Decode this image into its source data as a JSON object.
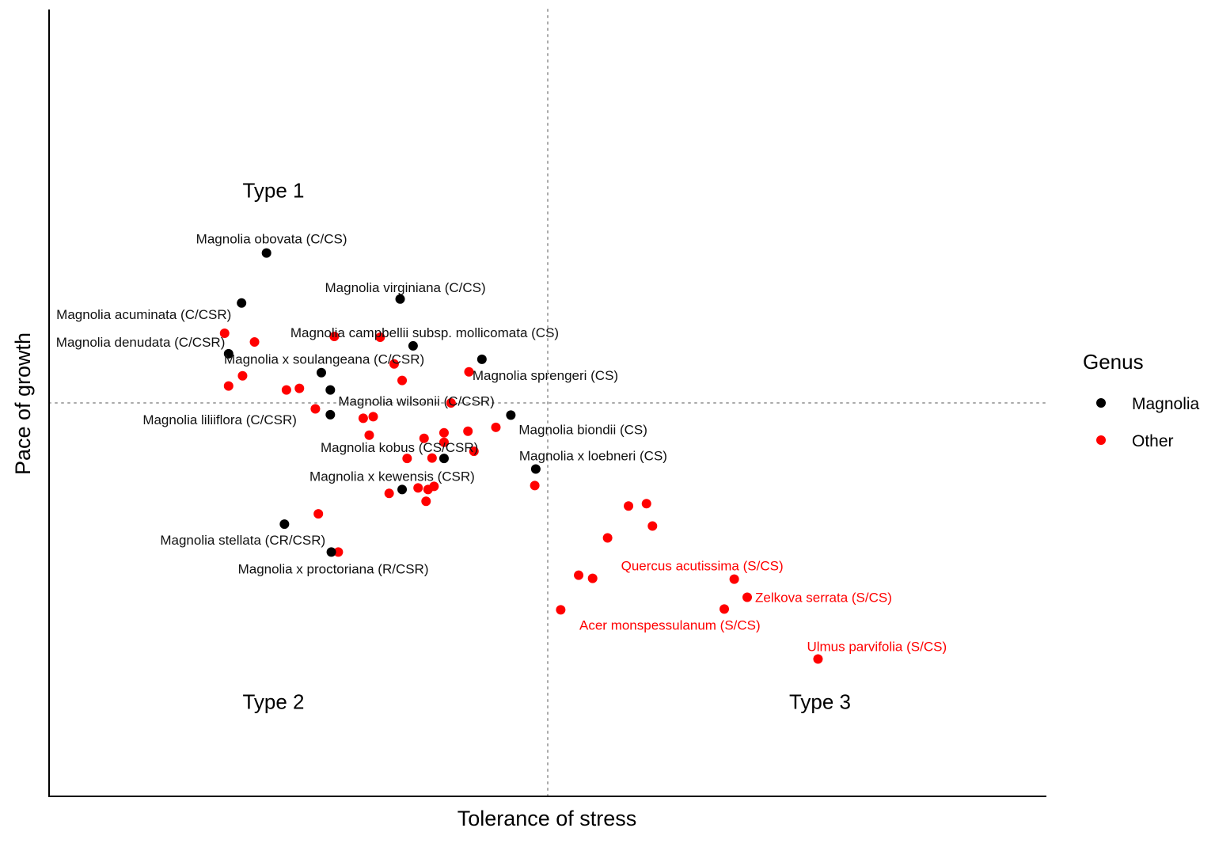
{
  "chart_data": {
    "type": "scatter",
    "xlabel": "Tolerance of stress",
    "ylabel": "Pace of growth",
    "xlim": [
      0,
      100
    ],
    "ylim": [
      -100,
      100
    ],
    "ref_lines": {
      "x": 50,
      "y": 0
    },
    "grid": false,
    "legend": {
      "title": "Genus",
      "position": "right",
      "entries": [
        {
          "name": "Magnolia",
          "color": "#000000"
        },
        {
          "name": "Other",
          "color": "#ff0000"
        }
      ]
    },
    "quadrant_labels": [
      {
        "text": "Type 1",
        "x": 22.5,
        "y": 54
      },
      {
        "text": "Type 2",
        "x": 22.5,
        "y": -76
      },
      {
        "text": "Type 3",
        "x": 77.3,
        "y": -76
      }
    ],
    "series": [
      {
        "name": "Magnolia",
        "color": "#000000",
        "points": [
          {
            "x": 21.8,
            "y": 38.1,
            "label": "Magnolia obovata (C/CS)"
          },
          {
            "x": 35.2,
            "y": 26.4,
            "label": "Magnolia virginiana (C/CS)"
          },
          {
            "x": 19.3,
            "y": 25.4,
            "label": "Magnolia acuminata (C/CSR)"
          },
          {
            "x": 36.5,
            "y": 14.5,
            "label": "Magnolia campbellii subsp. mollicomata (CS)"
          },
          {
            "x": 18.0,
            "y": 12.5,
            "label": "Magnolia denudata (C/CSR)"
          },
          {
            "x": 27.3,
            "y": 7.7,
            "label": "Magnolia x soulangeana (C/CSR)"
          },
          {
            "x": 43.4,
            "y": 11.1,
            "label": "Magnolia sprengeri (CS)"
          },
          {
            "x": 28.2,
            "y": 3.3,
            "label": "Magnolia wilsonii (C/CSR)"
          },
          {
            "x": 28.2,
            "y": -3.0,
            "label": "Magnolia liliiflora (C/CSR)"
          },
          {
            "x": 46.3,
            "y": -3.1,
            "label": "Magnolia biondii (CS)"
          },
          {
            "x": 39.6,
            "y": -14.1,
            "label": "Magnolia kobus (CS/CSR)"
          },
          {
            "x": 48.8,
            "y": -16.8,
            "label": "Magnolia x loebneri (CS)"
          },
          {
            "x": 35.4,
            "y": -22.0,
            "label": "Magnolia x kewensis (CSR)"
          },
          {
            "x": 23.6,
            "y": -30.8,
            "label": "Magnolia stellata (CR/CSR)"
          },
          {
            "x": 28.3,
            "y": -37.9,
            "label": "Magnolia x proctoriana (R/CSR)"
          }
        ]
      },
      {
        "name": "Other",
        "color": "#ff0000",
        "points": [
          {
            "x": 17.6,
            "y": 17.7
          },
          {
            "x": 20.6,
            "y": 15.5
          },
          {
            "x": 28.6,
            "y": 16.9
          },
          {
            "x": 33.2,
            "y": 16.7
          },
          {
            "x": 34.6,
            "y": 9.9
          },
          {
            "x": 42.1,
            "y": 7.9
          },
          {
            "x": 19.4,
            "y": 6.9
          },
          {
            "x": 35.4,
            "y": 5.7
          },
          {
            "x": 18.0,
            "y": 4.3
          },
          {
            "x": 23.8,
            "y": 3.3
          },
          {
            "x": 25.1,
            "y": 3.7
          },
          {
            "x": 40.3,
            "y": 0.0
          },
          {
            "x": 26.7,
            "y": -1.5
          },
          {
            "x": 32.5,
            "y": -3.5
          },
          {
            "x": 31.5,
            "y": -3.9
          },
          {
            "x": 32.1,
            "y": -8.2
          },
          {
            "x": 39.6,
            "y": -7.6
          },
          {
            "x": 37.6,
            "y": -9.0
          },
          {
            "x": 39.6,
            "y": -10.0
          },
          {
            "x": 42.0,
            "y": -7.2
          },
          {
            "x": 44.8,
            "y": -6.2
          },
          {
            "x": 42.6,
            "y": -12.3
          },
          {
            "x": 35.9,
            "y": -14.1
          },
          {
            "x": 38.4,
            "y": -14.0
          },
          {
            "x": 48.7,
            "y": -21.0
          },
          {
            "x": 37.0,
            "y": -21.6
          },
          {
            "x": 38.0,
            "y": -22.0
          },
          {
            "x": 38.6,
            "y": -21.2
          },
          {
            "x": 34.1,
            "y": -23.0
          },
          {
            "x": 37.8,
            "y": -25.0
          },
          {
            "x": 27.0,
            "y": -28.2
          },
          {
            "x": 58.1,
            "y": -26.2
          },
          {
            "x": 59.9,
            "y": -25.6
          },
          {
            "x": 56.0,
            "y": -34.3
          },
          {
            "x": 60.5,
            "y": -31.3
          },
          {
            "x": 29.0,
            "y": -37.9
          },
          {
            "x": 53.1,
            "y": -43.8
          },
          {
            "x": 54.5,
            "y": -44.6
          },
          {
            "x": 68.7,
            "y": -44.8,
            "label": "Quercus acutissima (S/CS)"
          },
          {
            "x": 70.0,
            "y": -49.4,
            "label": "Zelkova serrata (S/CS)"
          },
          {
            "x": 67.7,
            "y": -52.4,
            "label": "Acer monspessulanum (S/CS)"
          },
          {
            "x": 51.3,
            "y": -52.6
          },
          {
            "x": 77.1,
            "y": -65.1,
            "label": "Ulmus parvifolia (S/CS)"
          }
        ]
      }
    ]
  }
}
